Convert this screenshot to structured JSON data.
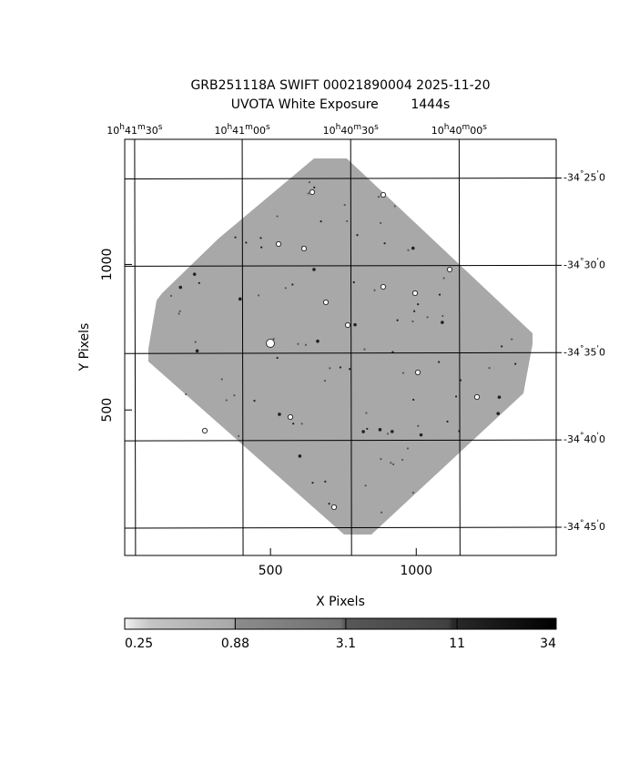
{
  "chart_data": {
    "type": "image",
    "title": [
      "GRB251118A SWIFT 00021890004 2025-11-20",
      "UVOTA White Exposure        1444s"
    ],
    "xlabel": "X Pixels",
    "ylabel": "Y Pixels",
    "xlim": [
      0,
      1480
    ],
    "ylim": [
      0,
      1430
    ],
    "xticks": [
      500,
      1000
    ],
    "yticks": [
      500,
      1000
    ],
    "ra_ticks": [
      {
        "value": 34,
        "label": "10h41m30s"
      },
      {
        "value": 403,
        "label": "10h41m00s"
      },
      {
        "value": 775,
        "label": "10h40m30s"
      },
      {
        "value": 1147,
        "label": "10h40m00s"
      }
    ],
    "dec_ticks": [
      {
        "value": 1297,
        "label": "-34°25'0"
      },
      {
        "value": 997,
        "label": "-34°30'0"
      },
      {
        "value": 697,
        "label": "-34°35'0"
      },
      {
        "value": 397,
        "label": "-34°40'0"
      },
      {
        "value": 97,
        "label": "-34°45'0"
      }
    ],
    "image_color": "#a8a8a8",
    "colorbar": {
      "scale": "log",
      "lim": [
        0.25,
        34
      ],
      "ticks": [
        0.25,
        0.88,
        3.1,
        11,
        34
      ]
    }
  }
}
